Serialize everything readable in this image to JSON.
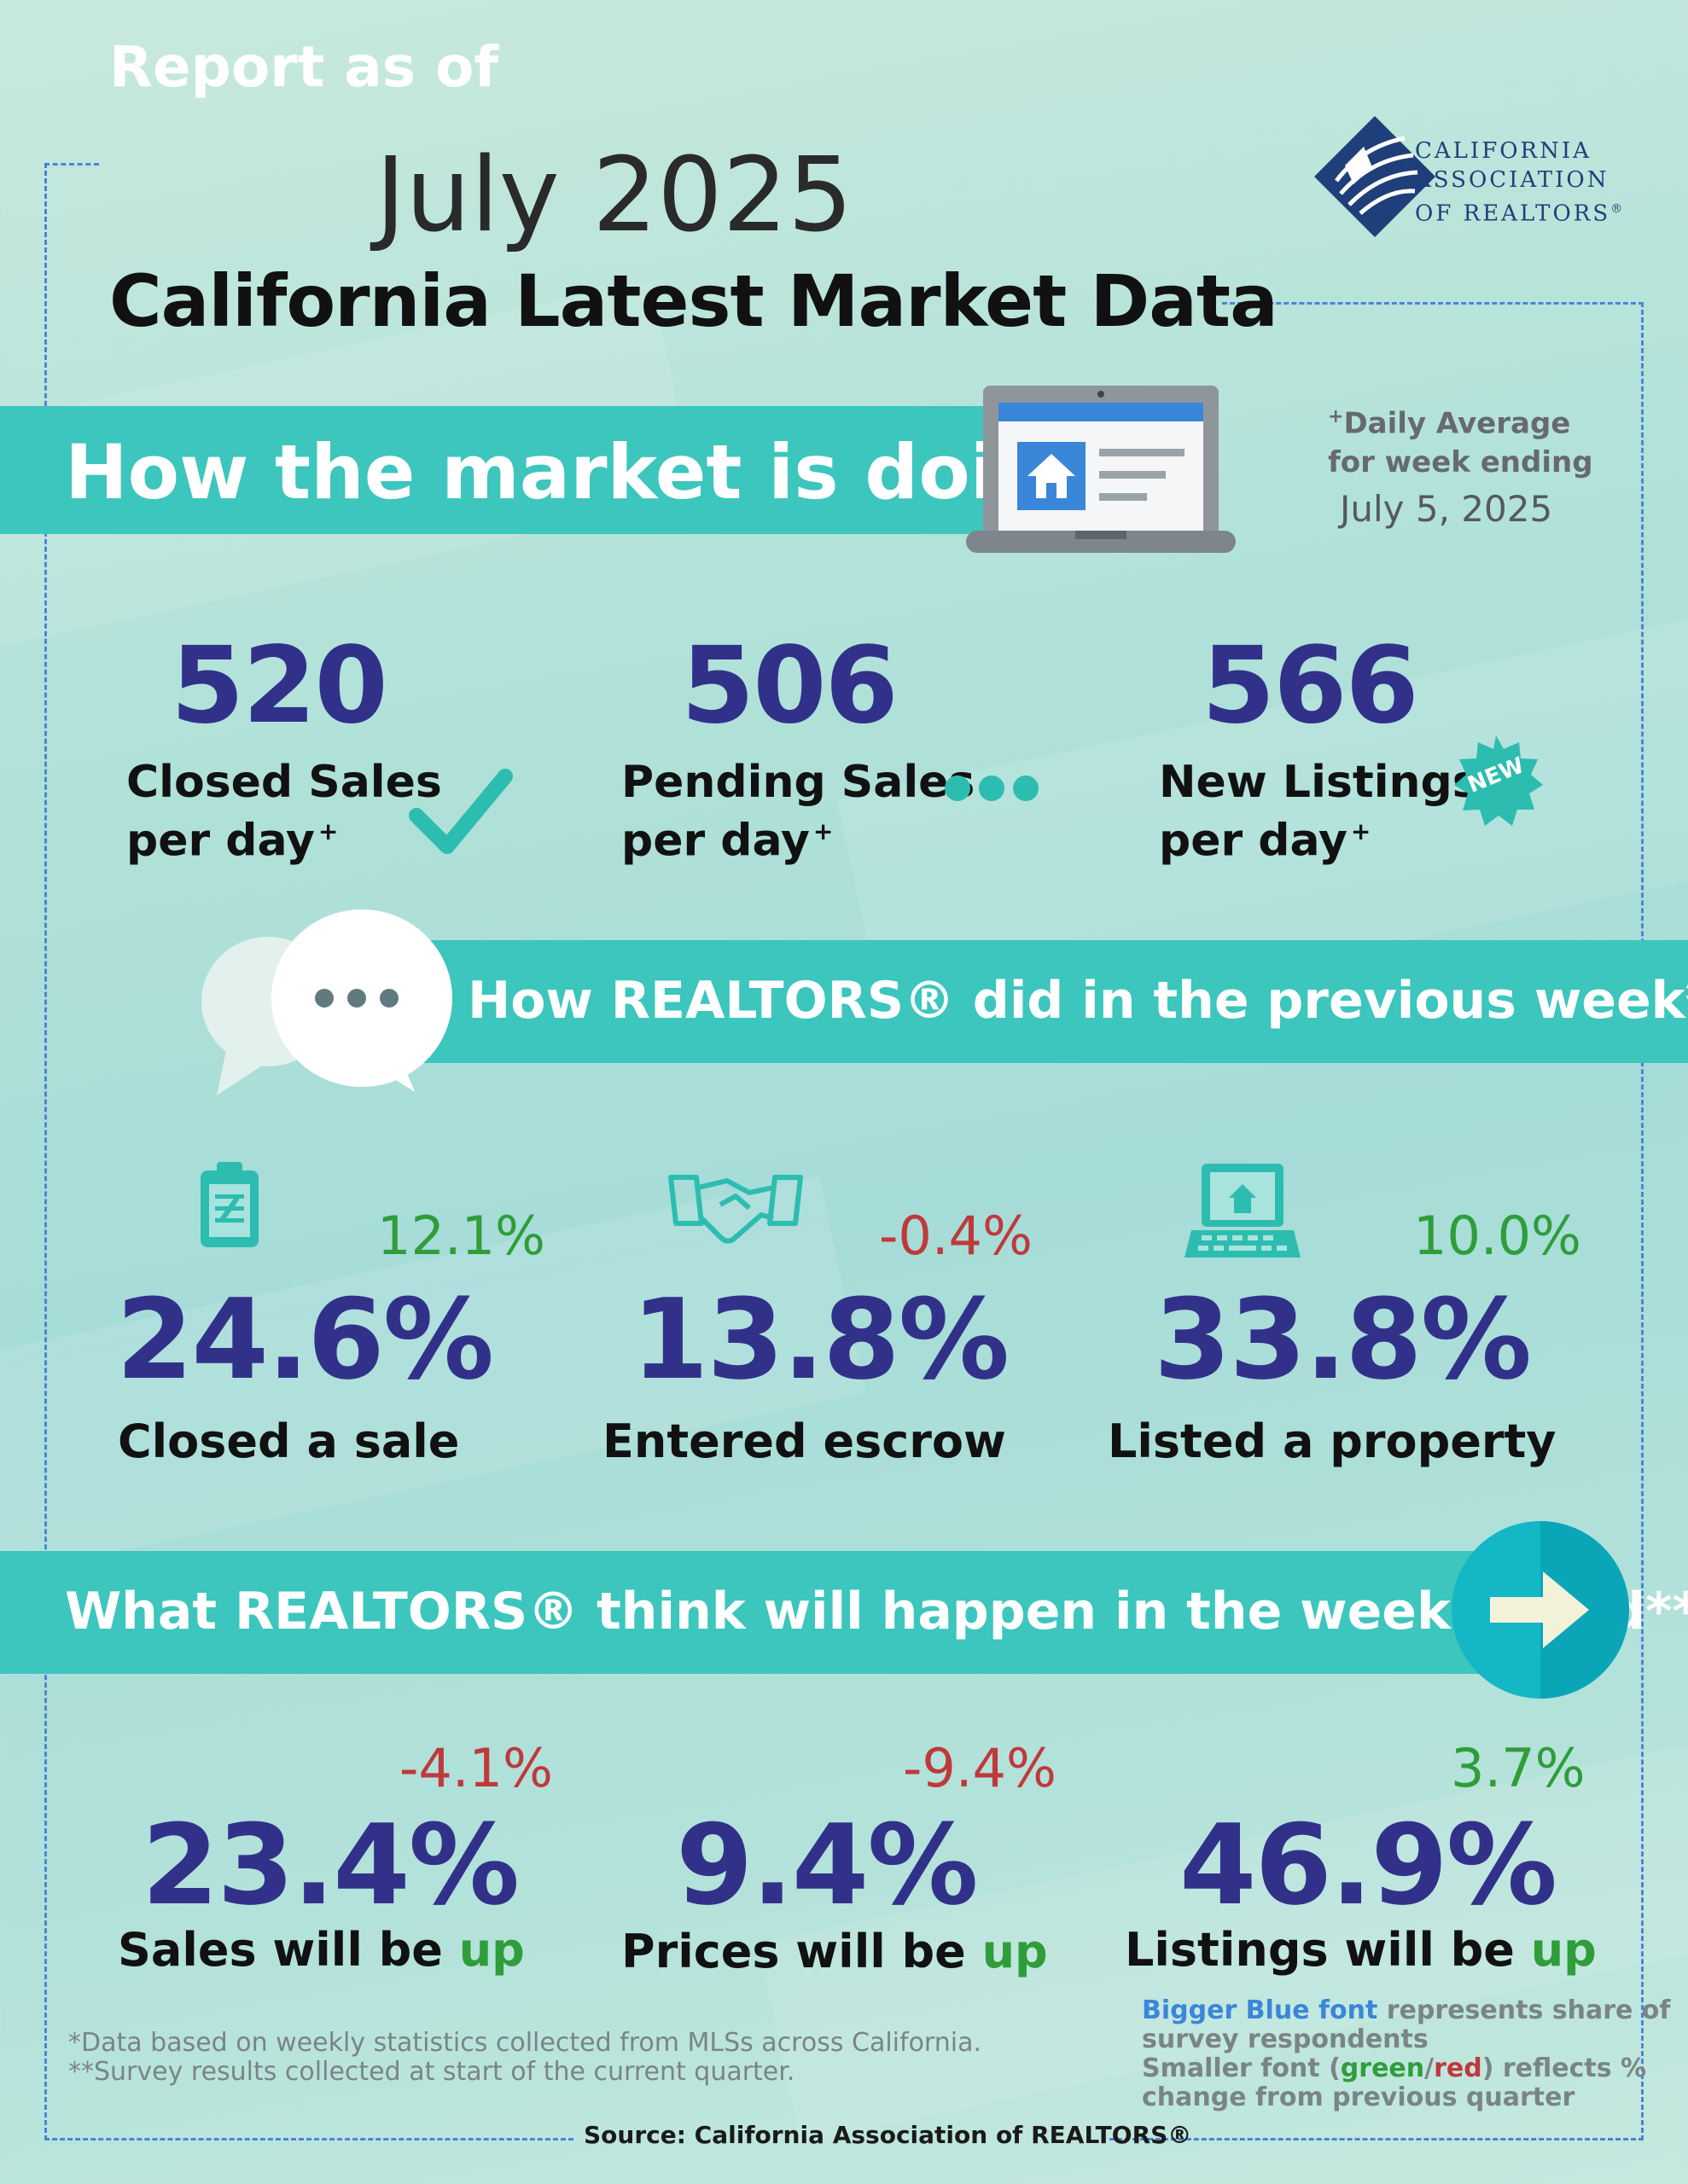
{
  "header": {
    "report_as_of": "Report as of",
    "month_year": "July 2025",
    "title": "California Latest Market Data"
  },
  "logo": {
    "line1": "CALIFORNIA",
    "line2": "ASSOCIATION",
    "line3": "OF REALTORS",
    "reg": "®",
    "brand_color": "#1f3f7a"
  },
  "market": {
    "heading": "How the market is doing*",
    "note_plus": "+",
    "note_line1": "Daily Average",
    "note_line2": "for week ending",
    "week_ending": "July 5, 2025",
    "stats": [
      {
        "value": "520",
        "label1": "Closed Sales",
        "label2": "per day",
        "plus": "+",
        "icon": "checkmark-icon"
      },
      {
        "value": "506",
        "label1": "Pending Sales",
        "label2": "per day",
        "plus": "+",
        "icon": "dots-icon"
      },
      {
        "value": "566",
        "label1": "New Listings",
        "label2": "per day",
        "plus": "+",
        "icon": "new-badge-icon",
        "badge": "NEW"
      }
    ]
  },
  "previous_week": {
    "heading": "How REALTORS® did in the previous week**",
    "stats": [
      {
        "value": "24.6%",
        "change": "12.1%",
        "label": "Closed a sale",
        "icon": "clipboard-icon"
      },
      {
        "value": "13.8%",
        "change": "-0.4%",
        "label": "Entered escrow",
        "icon": "handshake-icon"
      },
      {
        "value": "33.8%",
        "change": "10.0%",
        "label": "Listed a property",
        "icon": "laptop-house-icon"
      }
    ]
  },
  "week_ahead": {
    "heading": "What REALTORS® think will happen in the week ahead**",
    "stats": [
      {
        "value": "23.4%",
        "change": "-4.1%",
        "label": "Sales will be",
        "up": "up"
      },
      {
        "value": "9.4%",
        "change": "-9.4%",
        "label": "Prices will be",
        "up": "up"
      },
      {
        "value": "46.9%",
        "change": "3.7%",
        "label": "Listings will be",
        "up": "up"
      }
    ]
  },
  "footnotes": {
    "note1": "*Data based on weekly statistics collected from MLSs across California.",
    "note2": "**Survey results collected at start of the current quarter."
  },
  "legend": {
    "bigger_blue": "Bigger Blue font",
    "represents": " represents share of",
    "survey": "survey respondents",
    "smaller_font": "Smaller font ",
    "paren_open": "(",
    "green": "green",
    "slash": "/",
    "red": "red",
    "paren_close": ")",
    "reflects": " reflects %",
    "change_prev": "change from previous quarter"
  },
  "source": "Source: California Association of REALTORS®",
  "colors": {
    "teal_band": "#3cc6bd",
    "number_blue": "#32318a",
    "green": "#2f9d3a",
    "red": "#c0393a",
    "dash_blue": "#4a84d8"
  }
}
